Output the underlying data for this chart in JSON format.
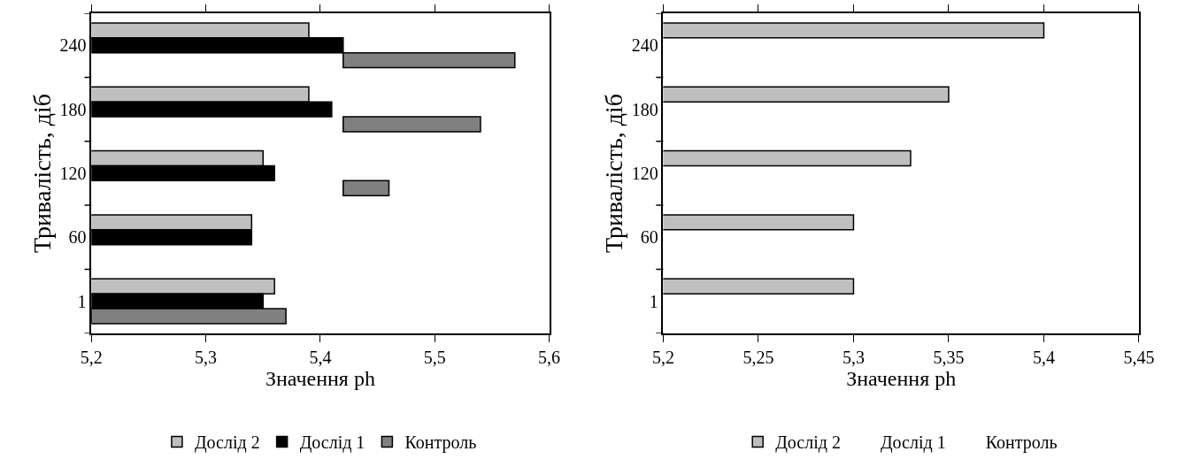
{
  "chart_data": [
    {
      "type": "bar",
      "orientation": "horizontal",
      "xlabel": "Значення ph",
      "ylabel": "Тривалість, діб",
      "categories": [
        "240",
        "180",
        "120",
        "60",
        "1"
      ],
      "xlim": [
        5.2,
        5.6
      ],
      "xticks": [
        {
          "value": 5.2,
          "label": "5,2"
        },
        {
          "value": 5.3,
          "label": "5,3"
        },
        {
          "value": 5.4,
          "label": "5,4"
        },
        {
          "value": 5.5,
          "label": "5,5"
        },
        {
          "value": 5.6,
          "label": "5,6"
        }
      ],
      "grid": false,
      "legend": "bottom",
      "series": [
        {
          "name": "Дослід 2",
          "color": "#bfbfbf",
          "values": [
            5.39,
            5.39,
            5.35,
            5.34,
            5.36
          ]
        },
        {
          "name": "Дослід 1",
          "color": "#000000",
          "values": [
            5.42,
            5.41,
            5.36,
            5.34,
            5.35
          ]
        },
        {
          "name": "Контроль",
          "color": "#808080",
          "base": [
            5.42,
            5.42,
            5.42,
            null,
            5.2
          ],
          "values": [
            0.15,
            0.12,
            0.04,
            null,
            0.17
          ]
        }
      ]
    },
    {
      "type": "bar",
      "orientation": "horizontal",
      "xlabel": "Значення ph",
      "ylabel": "Тривалість, діб",
      "categories": [
        "240",
        "180",
        "120",
        "60",
        "1"
      ],
      "xlim": [
        5.2,
        5.45
      ],
      "xticks": [
        {
          "value": 5.2,
          "label": "5,2"
        },
        {
          "value": 5.25,
          "label": "5,25"
        },
        {
          "value": 5.3,
          "label": "5,3"
        },
        {
          "value": 5.35,
          "label": "5,35"
        },
        {
          "value": 5.4,
          "label": "5,4"
        },
        {
          "value": 5.45,
          "label": "5,45"
        }
      ],
      "grid": false,
      "legend": "bottom",
      "series": [
        {
          "name": "Дослід 2",
          "color": "#bfbfbf",
          "values": [
            5.4,
            5.35,
            5.33,
            5.3,
            5.3
          ]
        },
        {
          "name": "Дослід 1",
          "values": [
            null,
            null,
            null,
            null,
            null
          ]
        },
        {
          "name": "Контроль",
          "values": [
            null,
            null,
            null,
            null,
            null
          ]
        }
      ]
    }
  ]
}
